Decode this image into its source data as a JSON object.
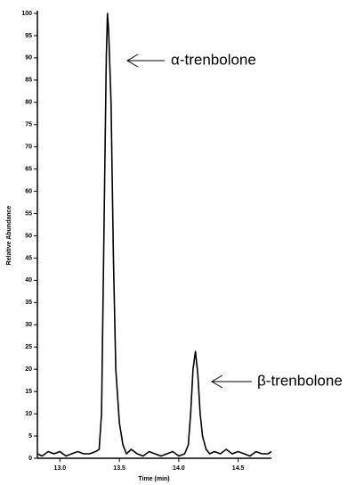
{
  "chart_data": {
    "type": "line",
    "xlabel": "Time (min)",
    "ylabel": "Relative Abundance",
    "x": [
      12.81,
      12.85,
      12.9,
      12.95,
      13.0,
      13.05,
      13.1,
      13.15,
      13.2,
      13.25,
      13.3,
      13.33,
      13.35,
      13.37,
      13.39,
      13.4,
      13.41,
      13.43,
      13.45,
      13.47,
      13.5,
      13.53,
      13.56,
      13.6,
      13.65,
      13.7,
      13.75,
      13.8,
      13.85,
      13.9,
      13.95,
      14.0,
      14.05,
      14.08,
      14.1,
      14.12,
      14.14,
      14.16,
      14.18,
      14.2,
      14.23,
      14.26,
      14.3,
      14.35,
      14.4,
      14.45,
      14.5,
      14.55,
      14.6,
      14.65,
      14.7,
      14.75,
      14.78
    ],
    "values": [
      1,
      0.5,
      1.5,
      1,
      1.5,
      0.5,
      1,
      1.5,
      1,
      1,
      1.5,
      2,
      10,
      50,
      90,
      100,
      96,
      80,
      45,
      20,
      8,
      3,
      1,
      2,
      1,
      0.5,
      1.5,
      1,
      0.5,
      1,
      1.5,
      0.5,
      1,
      3,
      10,
      20,
      24,
      19,
      10,
      5,
      2,
      1,
      1.5,
      1,
      2,
      1,
      1.5,
      1,
      0.5,
      1.5,
      1,
      1,
      1.5
    ],
    "color": "#000000",
    "xlim": [
      12.81,
      14.78
    ],
    "xticks": [
      {
        "value": 13,
        "label": "13.0"
      },
      13.5,
      {
        "value": 14,
        "label": "14.0"
      },
      14.5
    ],
    "ylim": [
      0,
      100
    ],
    "yticks": [
      0,
      5,
      10,
      15,
      20,
      25,
      30,
      35,
      40,
      45,
      50,
      55,
      60,
      65,
      70,
      75,
      80,
      85,
      90,
      95,
      100
    ],
    "annotations": [
      "α-trenbolone",
      "β-trenbolone"
    ]
  }
}
